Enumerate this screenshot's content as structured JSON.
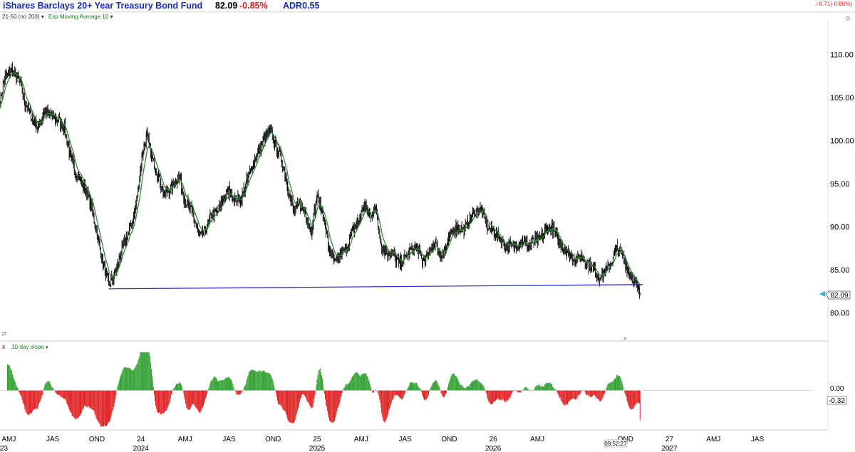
{
  "header": {
    "title": "iShares Barclays 20+ Year Treasury Bond Fund",
    "price": "82.09",
    "change_pct": "-0.85%",
    "adr": "ADR0.55",
    "right_change": "-0.71(-0.86%)",
    "settings_line": "21-50 (no 200)",
    "ema_label": "Exp Moving Average 10"
  },
  "lower_panel": {
    "close_glyph": "x",
    "label": "10-day slope",
    "zero_label": "0.00",
    "value_label": "-0.32"
  },
  "price_box": "82.09",
  "time_label": "09:52:27",
  "colors": {
    "price_bars": "#000000",
    "ema": "#2e8b2e",
    "trendline": "#2020c8",
    "up_slope": "#2fa02f",
    "down_slope": "#e02020",
    "title": "#1a2bb8"
  },
  "chart_data": {
    "type": "bar",
    "title": "iShares Barclays 20+ Year Treasury Bond Fund",
    "y_axis_ticks": [
      "110.00",
      "105.00",
      "100.00",
      "95.00",
      "90.00",
      "85.00",
      "80.00"
    ],
    "y_axis_values": [
      110,
      105,
      100,
      95,
      90,
      85,
      80
    ],
    "ylim": [
      77.5,
      114
    ],
    "x_axis_labels": [
      {
        "label": "AMJ",
        "x": 0.6
      },
      {
        "label": "JAS",
        "x": 3.6
      },
      {
        "label": "OND",
        "x": 6.6
      },
      {
        "label": "24",
        "x": 9.6
      },
      {
        "label": "AMJ",
        "x": 12.6
      },
      {
        "label": "JAS",
        "x": 15.6
      },
      {
        "label": "OND",
        "x": 18.6
      },
      {
        "label": "25",
        "x": 21.6
      },
      {
        "label": "AMJ",
        "x": 24.6
      },
      {
        "label": "JAS",
        "x": 27.6
      },
      {
        "label": "OND",
        "x": 30.6
      },
      {
        "label": "26",
        "x": 33.6
      },
      {
        "label": "AMJ",
        "x": 36.6
      },
      {
        "label": "OND",
        "x": 42.6
      },
      {
        "label": "27",
        "x": 45.6
      },
      {
        "label": "AMJ",
        "x": 48.6
      },
      {
        "label": "JAS",
        "x": 51.6
      }
    ],
    "year_labels": [
      {
        "label": "23",
        "x": 0
      },
      {
        "label": "2024",
        "x": 9.6
      },
      {
        "label": "2025",
        "x": 21.6
      },
      {
        "label": "2026",
        "x": 33.6
      },
      {
        "label": "2027",
        "x": 45.6
      }
    ],
    "x_range": [
      0,
      56.4
    ],
    "close_series_key_points": [
      [
        0,
        104.5
      ],
      [
        0.3,
        107.2
      ],
      [
        0.8,
        108.2
      ],
      [
        1.3,
        107
      ],
      [
        1.7,
        104.4
      ],
      [
        2.2,
        102.5
      ],
      [
        2.6,
        101.5
      ],
      [
        3.0,
        103.4
      ],
      [
        3.4,
        103.0
      ],
      [
        3.9,
        102.5
      ],
      [
        4.4,
        101.5
      ],
      [
        4.8,
        98
      ],
      [
        5.2,
        96.2
      ],
      [
        5.7,
        94.7
      ],
      [
        6.2,
        92.5
      ],
      [
        6.7,
        88.4
      ],
      [
        7.1,
        85.2
      ],
      [
        7.4,
        83.2
      ],
      [
        7.8,
        84.4
      ],
      [
        8.2,
        86.8
      ],
      [
        8.7,
        89.1
      ],
      [
        9.1,
        91
      ],
      [
        9.4,
        94.2
      ],
      [
        9.7,
        98.5
      ],
      [
        10.0,
        100.6
      ],
      [
        10.4,
        97.7
      ],
      [
        10.8,
        95.9
      ],
      [
        11.2,
        93.6
      ],
      [
        11.7,
        94.7
      ],
      [
        12.2,
        95.9
      ],
      [
        12.6,
        93.1
      ],
      [
        13.1,
        91.6
      ],
      [
        13.6,
        88.8
      ],
      [
        14.0,
        89.6
      ],
      [
        14.4,
        91.4
      ],
      [
        14.8,
        91.7
      ],
      [
        15.2,
        93.2
      ],
      [
        15.6,
        94.2
      ],
      [
        16.0,
        93.2
      ],
      [
        16.4,
        93.2
      ],
      [
        16.8,
        95.2
      ],
      [
        17.2,
        97.2
      ],
      [
        17.6,
        98.7
      ],
      [
        18.0,
        100.2
      ],
      [
        18.4,
        101.2
      ],
      [
        18.8,
        99.4
      ],
      [
        19.2,
        97.8
      ],
      [
        19.6,
        94.7
      ],
      [
        20.0,
        91.6
      ],
      [
        20.4,
        92.6
      ],
      [
        20.8,
        91.6
      ],
      [
        21.2,
        89.6
      ],
      [
        21.6,
        93.6
      ],
      [
        22.0,
        91.5
      ],
      [
        22.4,
        87.6
      ],
      [
        22.8,
        85.7
      ],
      [
        23.2,
        86.8
      ],
      [
        23.6,
        87.6
      ],
      [
        24.0,
        89.4
      ],
      [
        24.4,
        90.6
      ],
      [
        24.8,
        92.4
      ],
      [
        25.2,
        91.4
      ],
      [
        25.6,
        92.2
      ],
      [
        26.0,
        87.6
      ],
      [
        26.4,
        87.0
      ],
      [
        26.8,
        86.8
      ],
      [
        27.2,
        85.6
      ],
      [
        27.6,
        86.4
      ],
      [
        28.0,
        87.3
      ],
      [
        28.4,
        87.6
      ],
      [
        28.8,
        85.9
      ],
      [
        29.2,
        86.7
      ],
      [
        29.6,
        88.3
      ],
      [
        30.0,
        86.7
      ],
      [
        30.4,
        87.5
      ],
      [
        30.8,
        89.6
      ],
      [
        31.2,
        90.0
      ],
      [
        31.6,
        89.6
      ],
      [
        32.0,
        90.8
      ],
      [
        32.4,
        91.8
      ],
      [
        32.8,
        92.0
      ],
      [
        33.2,
        90.0
      ],
      [
        33.6,
        89.6
      ],
      [
        34.0,
        88.8
      ],
      [
        34.4,
        87.8
      ],
      [
        34.8,
        87.8
      ],
      [
        35.2,
        88.0
      ],
      [
        35.6,
        88.3
      ],
      [
        36.0,
        87.8
      ],
      [
        36.4,
        88.4
      ],
      [
        36.8,
        88.5
      ],
      [
        37.2,
        89.8
      ],
      [
        37.6,
        89.8
      ],
      [
        38.0,
        88.6
      ],
      [
        38.4,
        87.5
      ],
      [
        38.8,
        86.8
      ],
      [
        39.2,
        86.2
      ],
      [
        39.6,
        86.5
      ],
      [
        40.0,
        85.8
      ],
      [
        40.4,
        85.2
      ],
      [
        40.8,
        84.2
      ],
      [
        41.2,
        84.8
      ],
      [
        41.6,
        85.8
      ],
      [
        42.0,
        87.5
      ],
      [
        42.4,
        86.8
      ],
      [
        42.8,
        84.7
      ],
      [
        43.2,
        83.8
      ],
      [
        43.6,
        82.09
      ]
    ],
    "trendline": {
      "x1": 7.4,
      "y1": 82.8,
      "x2": 43.8,
      "y2": 83.3
    },
    "lower_panel_ylim": [
      -0.9,
      0.9
    ],
    "lower_panel_ticks": [
      "0.00"
    ],
    "lower_panel_last_value": -0.32
  }
}
